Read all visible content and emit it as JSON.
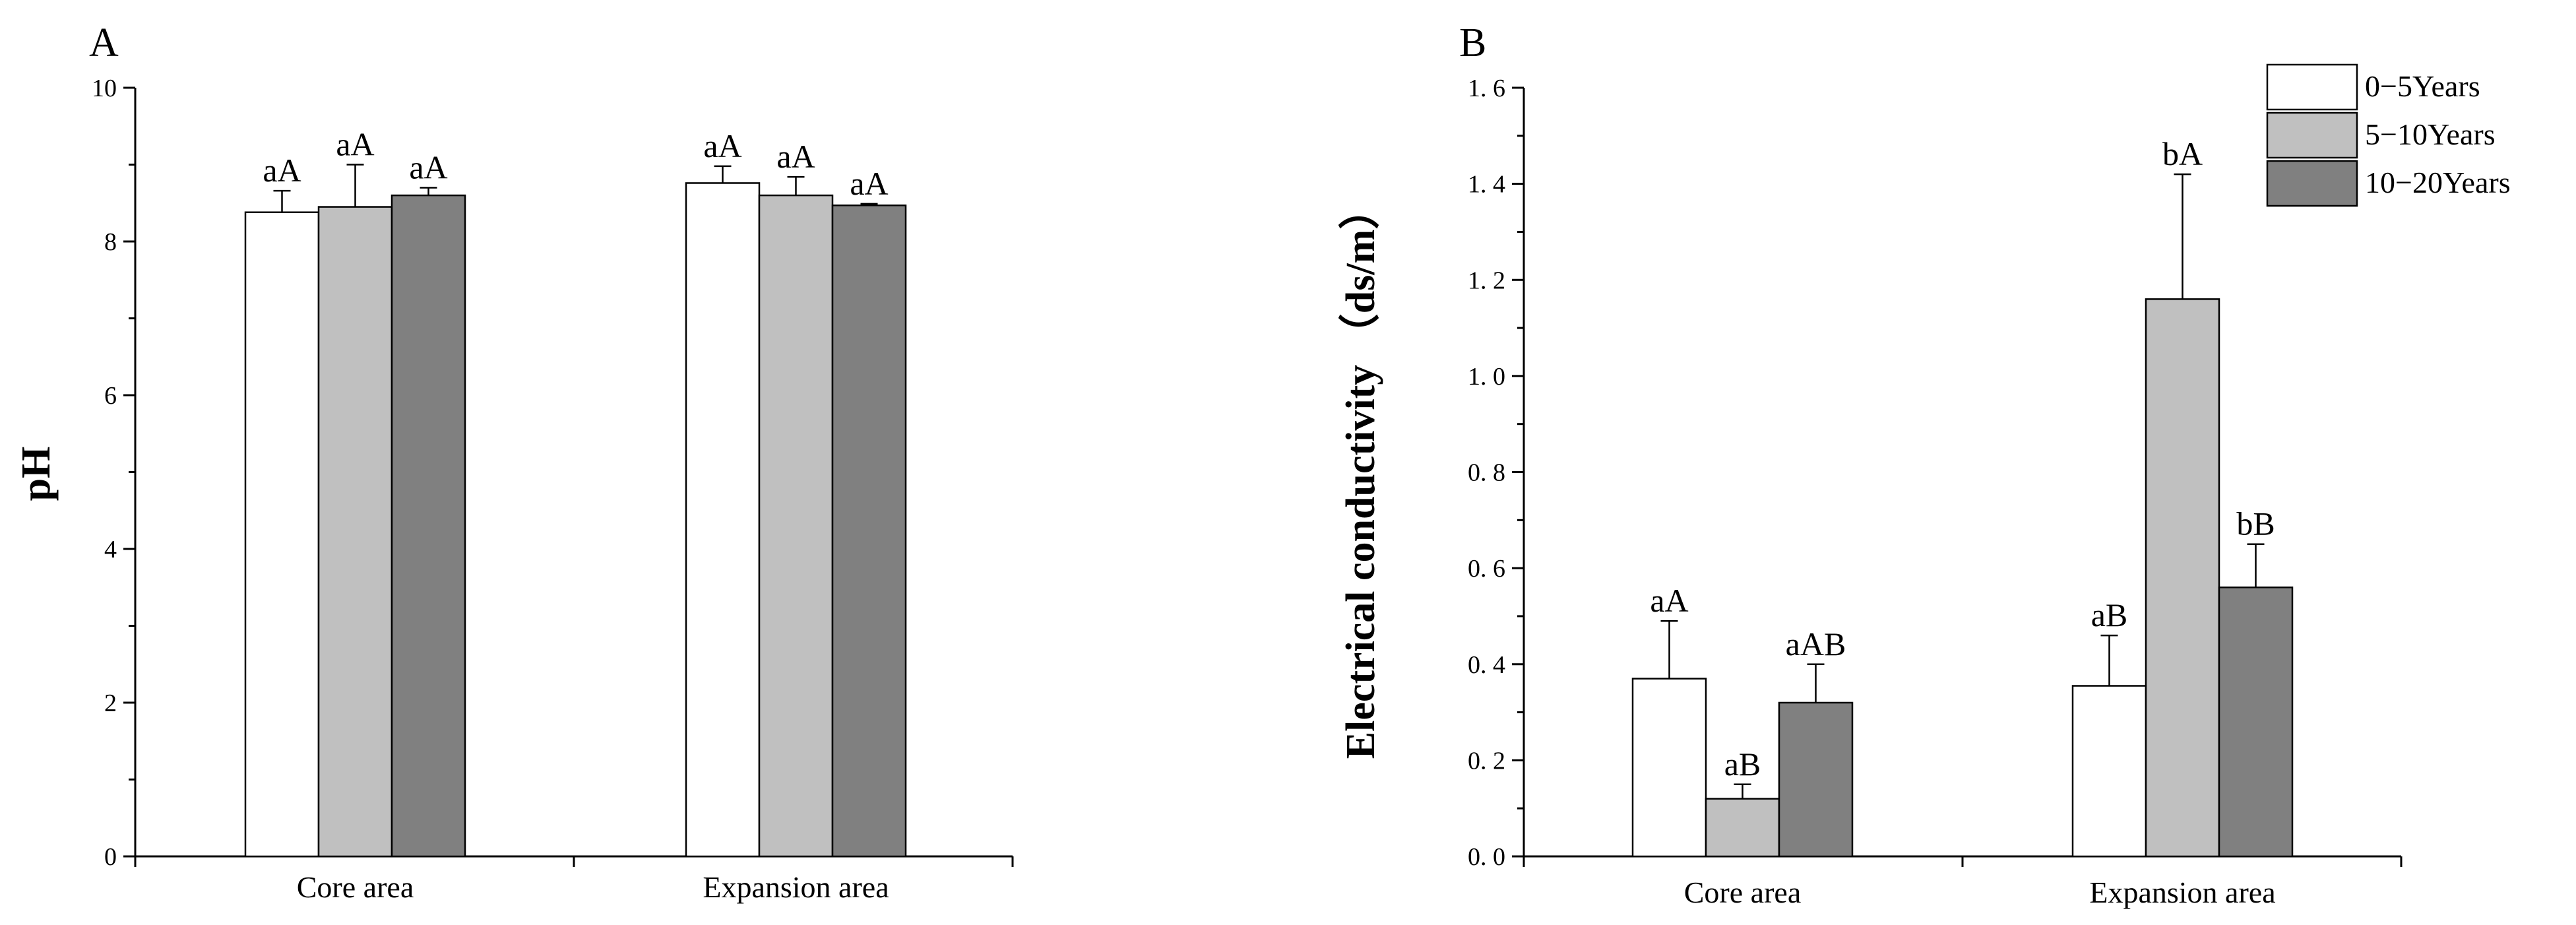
{
  "chart_data": [
    {
      "panel_label": "A",
      "type": "bar",
      "ylabel": "pH",
      "xlabel": "",
      "ylim": [
        0,
        10
      ],
      "yticks": [
        "0",
        "2",
        "4",
        "6",
        "8",
        "10"
      ],
      "categories": [
        "Core area",
        "Expansion area"
      ],
      "series": [
        {
          "name": "0-5Years",
          "values": [
            8.38,
            8.76
          ],
          "errors": [
            0.28,
            0.22
          ],
          "labels": [
            "aA",
            "aA"
          ]
        },
        {
          "name": "5-10Years",
          "values": [
            8.45,
            8.6
          ],
          "errors": [
            0.55,
            0.24
          ],
          "labels": [
            "aA",
            "aA"
          ]
        },
        {
          "name": "10-20Years",
          "values": [
            8.6,
            8.47
          ],
          "errors": [
            0.1,
            0.02
          ],
          "labels": [
            "aA",
            "aA"
          ]
        }
      ]
    },
    {
      "panel_label": "B",
      "type": "bar",
      "ylabel": "Electrical conductivity （ds/m）",
      "xlabel": "",
      "ylim": [
        0,
        1.6
      ],
      "yticks": [
        "0. 0",
        "0. 2",
        "0. 4",
        "0. 6",
        "0. 8",
        "1. 0",
        "1. 2",
        "1. 4",
        "1. 6"
      ],
      "categories": [
        "Core area",
        "Expansion area"
      ],
      "legend": [
        "0−5Years",
        "5−10Years",
        "10−20Years"
      ],
      "legend_position": "top-right",
      "series": [
        {
          "name": "0-5Years",
          "values": [
            0.37,
            0.355
          ],
          "errors": [
            0.12,
            0.105
          ],
          "labels": [
            "aA",
            "aB"
          ]
        },
        {
          "name": "5-10Years",
          "values": [
            0.12,
            1.16
          ],
          "errors": [
            0.03,
            0.26
          ],
          "labels": [
            "aB",
            "bA"
          ]
        },
        {
          "name": "10-20Years",
          "values": [
            0.32,
            0.56
          ],
          "errors": [
            0.08,
            0.09
          ],
          "labels": [
            "aAB",
            "bB"
          ]
        }
      ]
    }
  ],
  "colors": {
    "series": [
      "#ffffff",
      "#c0c0c0",
      "#808080"
    ],
    "stroke": "#000000"
  }
}
